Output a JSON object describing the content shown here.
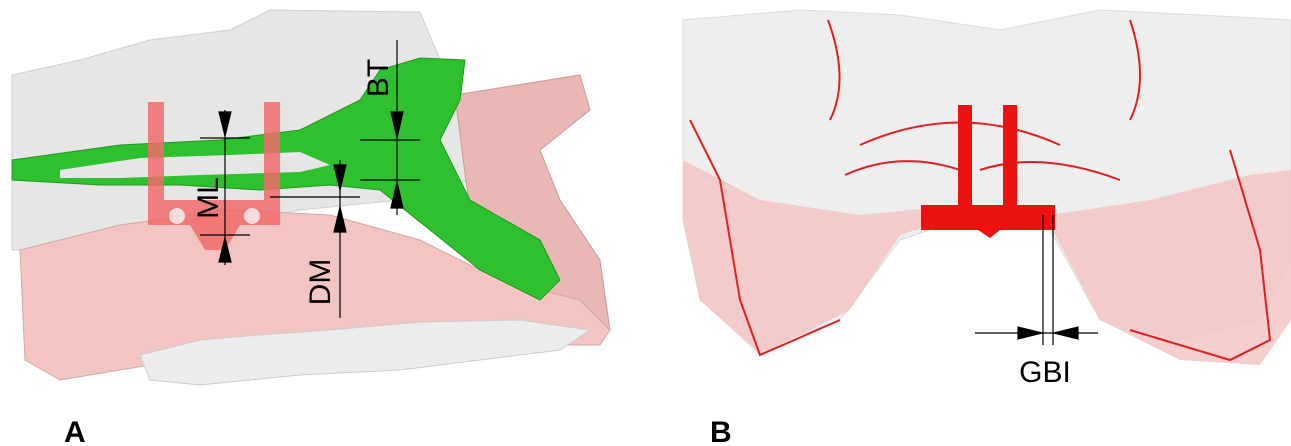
{
  "panels": [
    {
      "label": "A",
      "annotations": [
        "ML",
        "BT",
        "DM"
      ]
    },
    {
      "label": "B",
      "annotations": [
        "GBI"
      ]
    }
  ]
}
